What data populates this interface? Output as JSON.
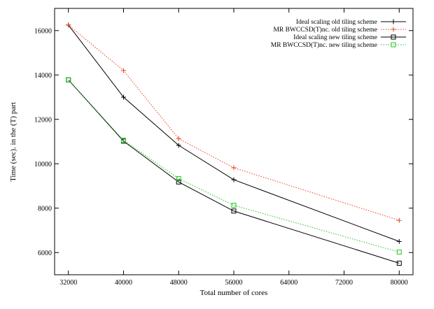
{
  "chart_data": {
    "type": "line",
    "title": "",
    "xlabel": "Total number of cores",
    "ylabel": "Time (sec). in the (T) part",
    "xlim": [
      30000,
      82000
    ],
    "ylim": [
      5000,
      17000
    ],
    "xticks": [
      32000,
      40000,
      48000,
      56000,
      64000,
      72000,
      80000
    ],
    "yticks": [
      6000,
      8000,
      10000,
      12000,
      14000,
      16000
    ],
    "grid": false,
    "legend_position": "top-right",
    "series": [
      {
        "name": "Ideal scaling    old tiling scheme",
        "color": "#000000",
        "line_style": "solid",
        "marker": "plus",
        "x": [
          32000,
          40000,
          48000,
          56000,
          80000
        ],
        "y": [
          16250,
          13000,
          10830,
          9280,
          6500
        ]
      },
      {
        "name": "MR BWCCSD(T)nc. old tiling scheme",
        "color": "#e8421a",
        "line_style": "dotted",
        "marker": "plus",
        "x": [
          32000,
          40000,
          48000,
          56000,
          80000
        ],
        "y": [
          16250,
          14200,
          11130,
          9820,
          7450
        ]
      },
      {
        "name": "Ideal scaling    new tiling scheme",
        "color": "#000000",
        "line_style": "solid",
        "marker": "square",
        "x": [
          32000,
          40000,
          48000,
          56000,
          80000
        ],
        "y": [
          13780,
          11020,
          9180,
          7870,
          5520
        ]
      },
      {
        "name": "MR BWCCSD(T)nc. new tiling scheme",
        "color": "#22c422",
        "line_style": "dotted",
        "marker": "square",
        "x": [
          32000,
          40000,
          48000,
          56000,
          80000
        ],
        "y": [
          13780,
          11060,
          9330,
          8130,
          6020
        ]
      }
    ]
  }
}
